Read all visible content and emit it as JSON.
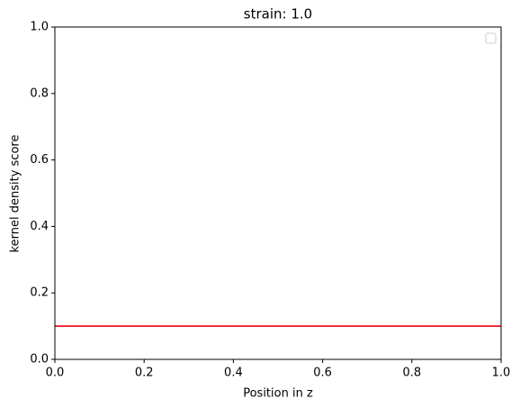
{
  "chart_data": {
    "type": "line",
    "title": "strain: 1.0",
    "x_label": "Position in z",
    "y_label": "kernel density score",
    "x": [
      0,
      1
    ],
    "series": [
      {
        "color": "#e8000b",
        "values": [
          0.1,
          0.1
        ]
      }
    ],
    "xlim": [
      0,
      1
    ],
    "ylim": [
      0,
      1
    ],
    "xticks": [
      {
        "value": 0,
        "label": "0.0"
      },
      0.2,
      0.4,
      0.6,
      0.8,
      {
        "value": 1,
        "label": "1.0"
      }
    ],
    "yticks": [
      {
        "value": 0,
        "label": "0.0"
      },
      0.2,
      0.4,
      0.6,
      0.8,
      {
        "value": 1,
        "label": "1.0"
      }
    ],
    "legend": "upper right",
    "grid": false
  }
}
